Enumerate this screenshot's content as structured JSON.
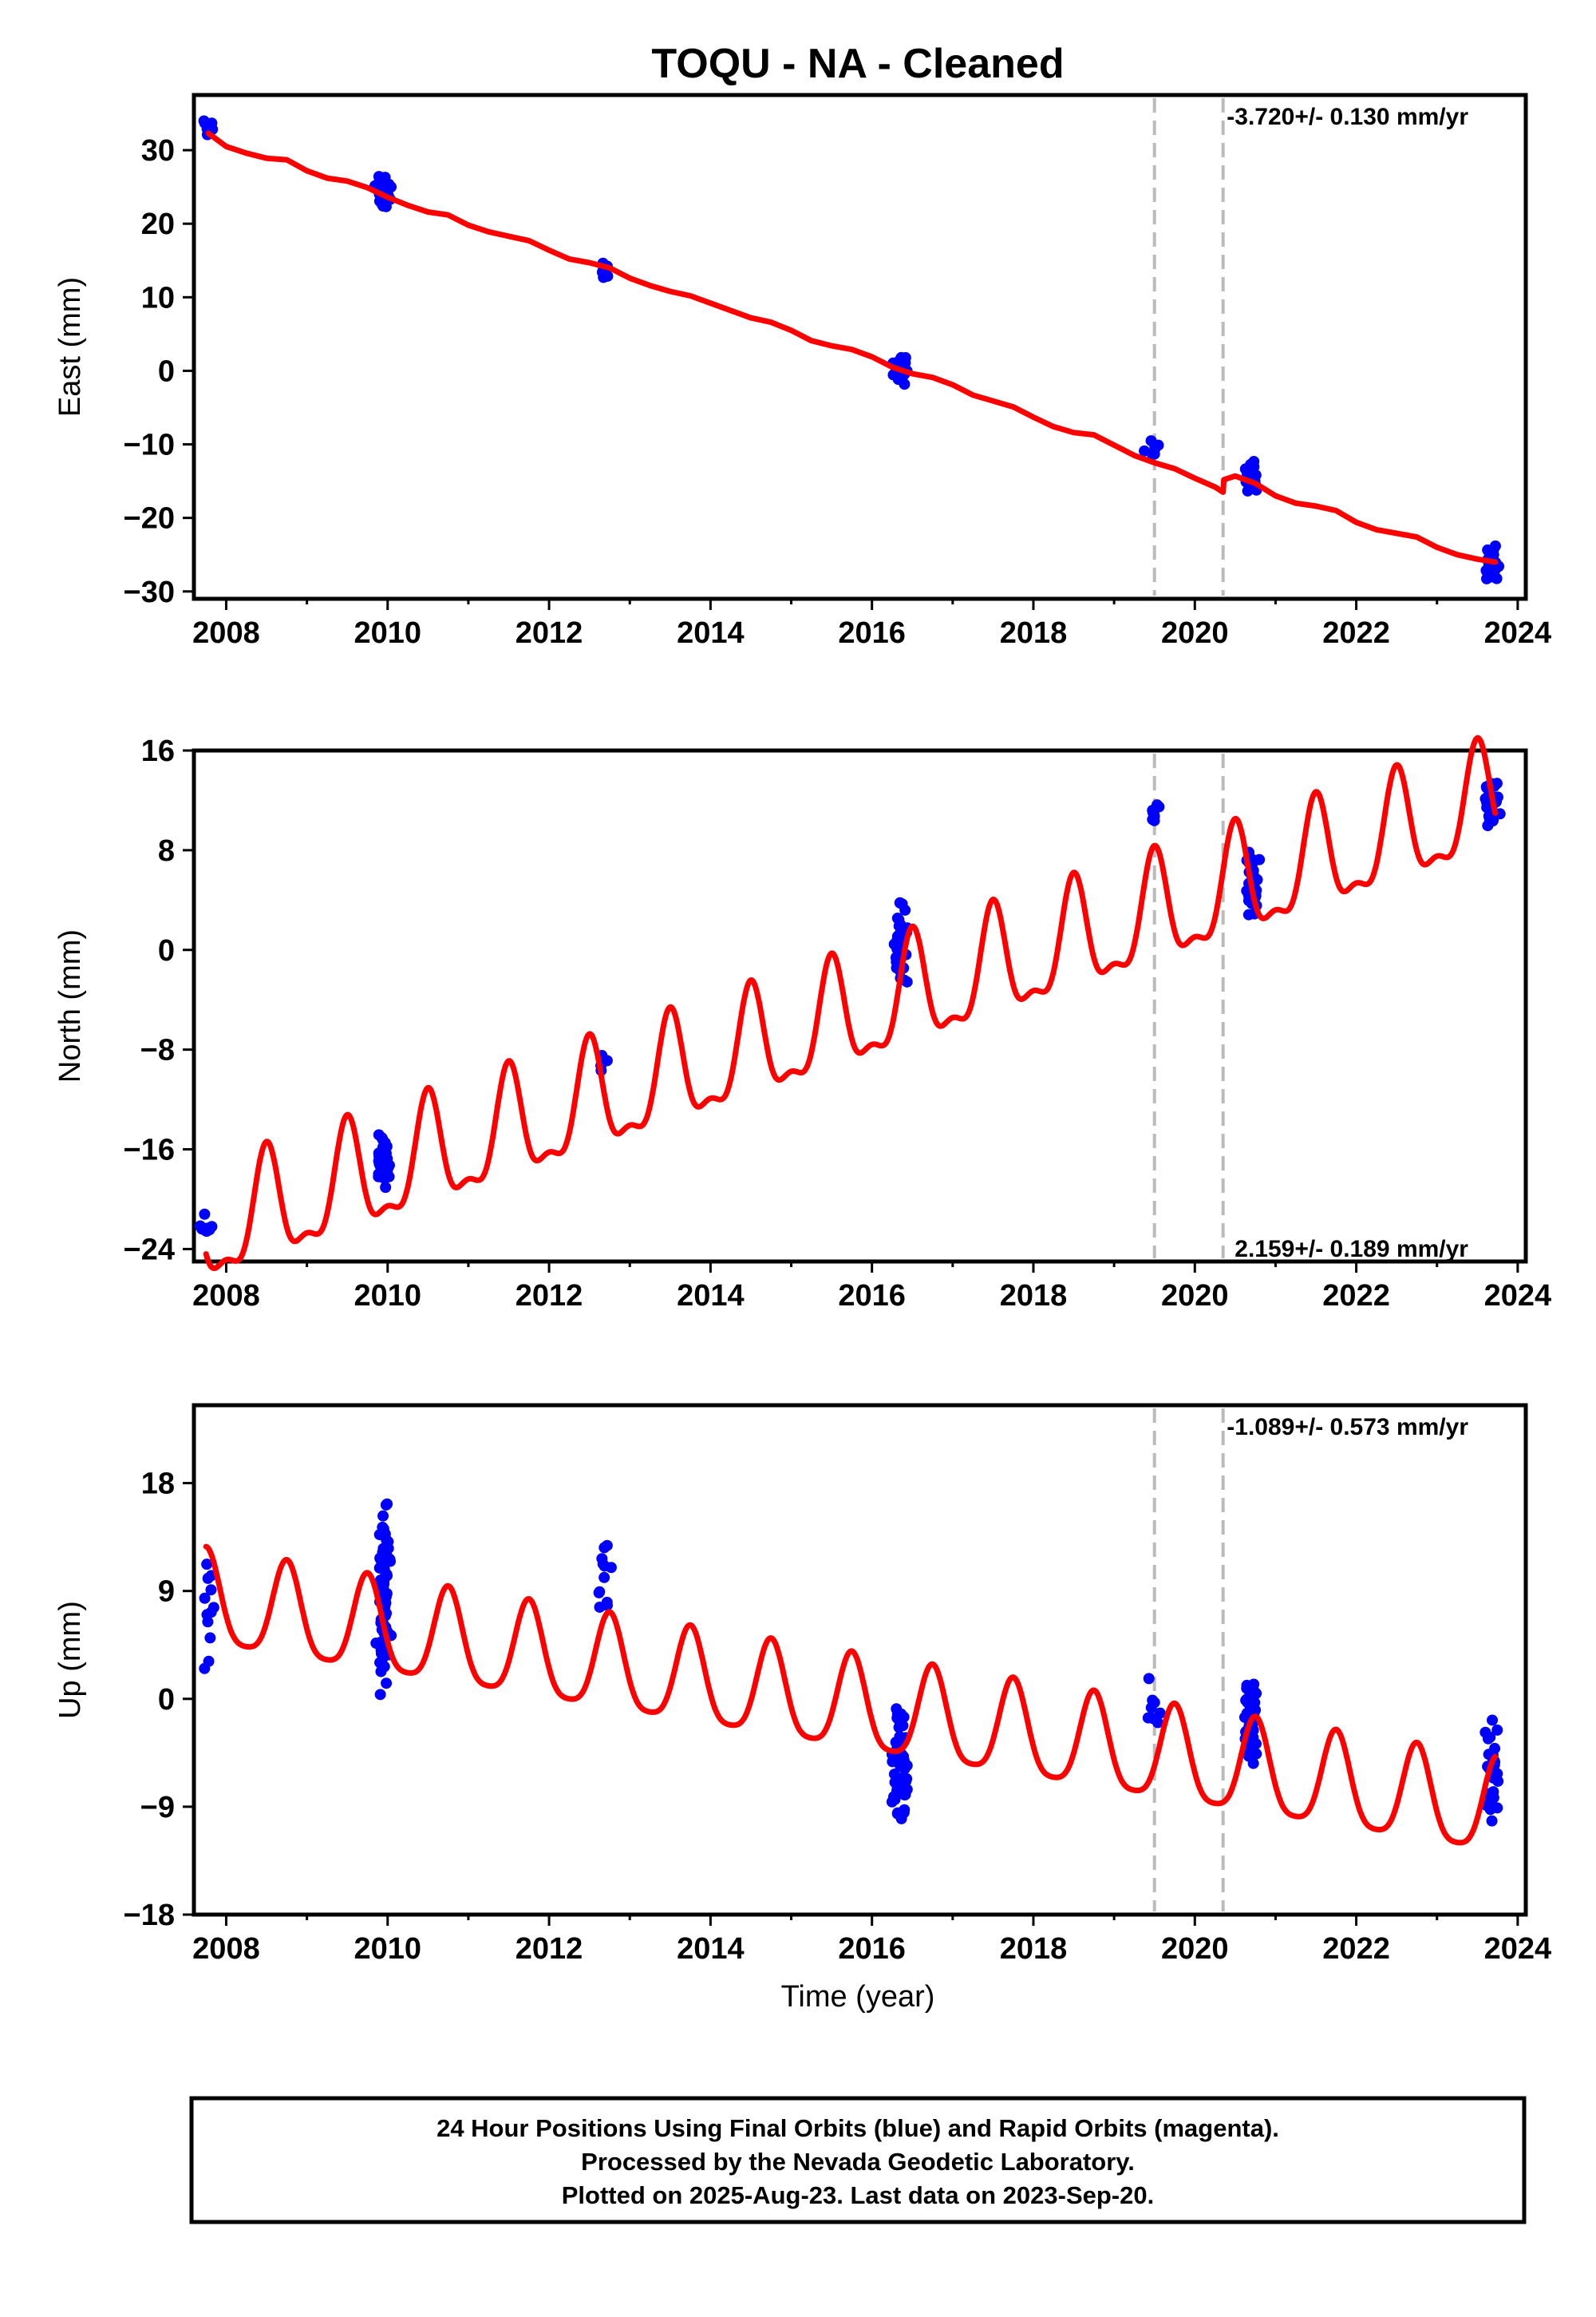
{
  "title": "TOQU  - NA - Cleaned",
  "xlabel": "Time (year)",
  "footer": [
    "24 Hour Positions Using Final Orbits (blue) and Rapid Orbits (magenta).",
    "Processed by the Nevada Geodetic Laboratory.",
    "Plotted on 2025-Aug-23. Last data on 2023-Sep-20."
  ],
  "colors": {
    "data": "#0000ff",
    "model": "#ff0000",
    "breaks": "#bbbbbb",
    "frame": "#000000"
  },
  "chart_data": [
    {
      "type": "scatter",
      "name": "east",
      "ylabel": "East (mm)",
      "rate_text": "-3.720+/- 0.130 mm/yr",
      "xlim": [
        2007.6,
        2024.1
      ],
      "ylim": [
        -31,
        37.5
      ],
      "yticks": [
        30,
        20,
        10,
        0,
        -10,
        -20,
        -30
      ],
      "ytick_labels": [
        "30",
        "20",
        "10",
        "0",
        "−10",
        "−20",
        "−30"
      ],
      "xticks": [
        2008,
        2010,
        2012,
        2014,
        2016,
        2018,
        2020,
        2022,
        2024
      ],
      "breaks": [
        2019.5,
        2020.35
      ],
      "model": {
        "x": [
          2007.78,
          2008.0,
          2008.25,
          2008.5,
          2008.75,
          2009.0,
          2009.25,
          2009.5,
          2009.75,
          2010.0,
          2010.25,
          2010.5,
          2010.75,
          2011.0,
          2011.25,
          2011.5,
          2011.75,
          2012.0,
          2012.25,
          2012.5,
          2012.75,
          2013.0,
          2013.25,
          2013.5,
          2013.75,
          2014.0,
          2014.25,
          2014.5,
          2014.75,
          2015.0,
          2015.25,
          2015.5,
          2015.75,
          2016.0,
          2016.25,
          2016.5,
          2016.75,
          2017.0,
          2017.25,
          2017.5,
          2017.75,
          2018.0,
          2018.25,
          2018.5,
          2018.75,
          2019.0,
          2019.25,
          2019.5,
          2019.75,
          2020.0,
          2020.25,
          2020.35,
          2020.36,
          2020.5,
          2020.75,
          2021.0,
          2021.25,
          2021.5,
          2021.75,
          2022.0,
          2022.25,
          2022.5,
          2022.75,
          2023.0,
          2023.25,
          2023.5,
          2023.72
        ],
        "y": [
          32.3,
          30.5,
          29.6,
          28.9,
          28.7,
          27.2,
          26.2,
          25.8,
          24.9,
          23.6,
          22.5,
          21.6,
          21.2,
          19.8,
          18.9,
          18.3,
          17.7,
          16.4,
          15.2,
          14.7,
          14.0,
          12.6,
          11.6,
          10.8,
          10.2,
          9.2,
          8.2,
          7.2,
          6.6,
          5.5,
          4.1,
          3.4,
          2.9,
          1.9,
          0.5,
          -0.4,
          -0.9,
          -1.9,
          -3.3,
          -4.1,
          -4.9,
          -6.3,
          -7.6,
          -8.4,
          -8.7,
          -10.1,
          -11.5,
          -12.5,
          -13.3,
          -14.6,
          -15.8,
          -16.5,
          -14.8,
          -14.3,
          -15.3,
          -17.0,
          -18.0,
          -18.4,
          -19.0,
          -20.6,
          -21.6,
          -22.1,
          -22.6,
          -24.0,
          -25.0,
          -25.6,
          -26.0
        ]
      },
      "observations": [
        {
          "x": 2007.78,
          "y": 33.2,
          "spread": 4.0,
          "n": 10
        },
        {
          "x": 2009.95,
          "y": 24.3,
          "spread": 5.5,
          "n": 55
        },
        {
          "x": 2012.68,
          "y": 13.5,
          "spread": 3.5,
          "n": 8
        },
        {
          "x": 2016.35,
          "y": 0.3,
          "spread": 5.0,
          "n": 30
        },
        {
          "x": 2019.48,
          "y": -10.2,
          "spread": 4.0,
          "n": 8
        },
        {
          "x": 2020.7,
          "y": -14.4,
          "spread": 5.0,
          "n": 45
        },
        {
          "x": 2023.68,
          "y": -26.5,
          "spread": 6.5,
          "n": 30
        }
      ]
    },
    {
      "type": "scatter",
      "name": "north",
      "ylabel": "North (mm)",
      "rate_text": "2.159+/- 0.189 mm/yr",
      "xlim": [
        2007.6,
        2024.1
      ],
      "ylim": [
        -25,
        16
      ],
      "yticks": [
        16,
        8,
        0,
        -8,
        -16,
        -24
      ],
      "ytick_labels": [
        "16",
        "8",
        "0",
        "−8",
        "−16",
        "−24"
      ],
      "xticks": [
        2008,
        2010,
        2012,
        2014,
        2016,
        2018,
        2020,
        2022,
        2024
      ],
      "breaks": [
        2019.5,
        2020.35
      ],
      "model": {
        "trend_start": -22.8,
        "trend_rate": 2.159,
        "x0": 2007.75,
        "x_end": 2023.72,
        "annual_amp": 4.2,
        "annual_phase_peak": 0.5,
        "semiannual_amp": 1.6
      },
      "observations": [
        {
          "x": 2007.78,
          "y": -22.3,
          "spread": 3.5,
          "n": 10
        },
        {
          "x": 2009.95,
          "y": -17.0,
          "spread": 5.0,
          "n": 55
        },
        {
          "x": 2012.68,
          "y": -9.3,
          "spread": 3.0,
          "n": 6
        },
        {
          "x": 2016.35,
          "y": 0.5,
          "spread": 9.0,
          "n": 35
        },
        {
          "x": 2019.48,
          "y": 11.0,
          "spread": 3.0,
          "n": 8
        },
        {
          "x": 2020.7,
          "y": 5.0,
          "spread": 8.5,
          "n": 40
        },
        {
          "x": 2023.68,
          "y": 11.5,
          "spread": 7.0,
          "n": 30
        }
      ]
    },
    {
      "type": "scatter",
      "name": "up",
      "ylabel": "Up (mm)",
      "rate_text": "-1.089+/- 0.573 mm/yr",
      "xlim": [
        2007.6,
        2024.1
      ],
      "ylim": [
        -18,
        24.5
      ],
      "yticks": [
        18,
        9,
        0,
        -9,
        -18
      ],
      "ytick_labels": [
        "18",
        "9",
        "0",
        "−9",
        "−18"
      ],
      "xticks": [
        2008,
        2010,
        2012,
        2014,
        2016,
        2018,
        2020,
        2022,
        2024
      ],
      "breaks": [
        2019.5,
        2020.35
      ],
      "model": {
        "trend_start": 8.0,
        "trend_rate": -1.089,
        "x0": 2007.75,
        "x_end": 2023.72,
        "annual_amp": 3.9,
        "annual_phase_peak": 0.75,
        "semiannual_amp": 0.8
      },
      "observations": [
        {
          "x": 2007.78,
          "y": 7.0,
          "spread": 14.0,
          "n": 12
        },
        {
          "x": 2009.95,
          "y": 9.0,
          "spread": 22.0,
          "n": 70
        },
        {
          "x": 2012.68,
          "y": 10.0,
          "spread": 13.0,
          "n": 12
        },
        {
          "x": 2016.35,
          "y": -5.0,
          "spread": 16.0,
          "n": 55
        },
        {
          "x": 2019.48,
          "y": -1.0,
          "spread": 9.0,
          "n": 8
        },
        {
          "x": 2020.7,
          "y": -2.0,
          "spread": 13.0,
          "n": 60
        },
        {
          "x": 2023.68,
          "y": -7.0,
          "spread": 16.0,
          "n": 30
        }
      ]
    }
  ]
}
